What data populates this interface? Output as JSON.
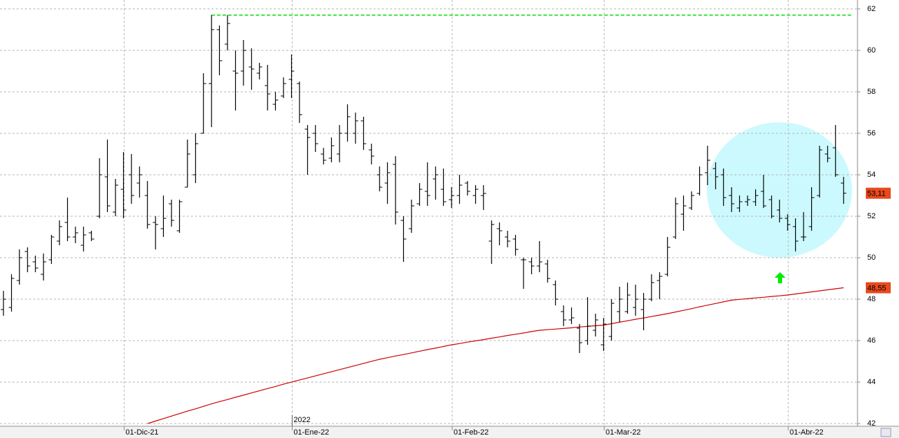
{
  "chart_data": {
    "type": "ohlc",
    "categories": [
      null,
      null,
      null,
      null,
      null,
      null,
      null,
      null,
      null,
      null,
      null,
      null,
      null,
      null,
      null,
      "01-Dic-21",
      null,
      null,
      null,
      null,
      null,
      null,
      null,
      null,
      null,
      null,
      null,
      null,
      null,
      null,
      null,
      null,
      null,
      null,
      null,
      null,
      "01-Ene-22",
      null,
      null,
      null,
      null,
      null,
      null,
      null,
      null,
      null,
      null,
      null,
      null,
      null,
      null,
      null,
      null,
      null,
      null,
      null,
      "01-Feb-22",
      null,
      null,
      null,
      null,
      null,
      null,
      null,
      null,
      null,
      null,
      null,
      null,
      null,
      null,
      null,
      null,
      null,
      null,
      "01-Mar-22",
      null,
      null,
      null,
      null,
      null,
      null,
      null,
      null,
      null,
      null,
      null,
      null,
      null,
      null,
      null,
      null,
      null,
      null,
      null,
      null,
      null,
      null,
      "01-Abr-22",
      null,
      null,
      null,
      null,
      null,
      null,
      null
    ],
    "year_label": "2022",
    "color": "#000000",
    "open": [
      47.5,
      47.6,
      48.9,
      50.3,
      49.8,
      49.2,
      49.9,
      50.8,
      51.7,
      51.0,
      50.6,
      51.2,
      52.0,
      53.9,
      52.2,
      53.3,
      54.0,
      53.6,
      53.0,
      51.7,
      51.4,
      52.6,
      51.3,
      53.4,
      54.0,
      56.0,
      58.4,
      61.0,
      60.3,
      59.0,
      59.0,
      59.2,
      58.9,
      58.3,
      57.4,
      57.8,
      58.6,
      58.4,
      56.2,
      56.0,
      55.0,
      54.8,
      55.0,
      56.0,
      56.0,
      56.6,
      55.2,
      54.0,
      53.6,
      54.5,
      51.8,
      51.4,
      52.6,
      53.2,
      53.8,
      53.3,
      52.8,
      53.0,
      53.6,
      53.0,
      53.0,
      50.8,
      51.4,
      51.0,
      50.9,
      49.9,
      49.8,
      49.6,
      49.7,
      48.7,
      47.4,
      47.0,
      46.6,
      46.0,
      46.5,
      45.8,
      46.2,
      47.4,
      47.4,
      47.6,
      47.5,
      48.0,
      48.9,
      49.2,
      51.0,
      52.1,
      52.4,
      53.1,
      54.1,
      54.3,
      54.0,
      53.0,
      52.4,
      52.7,
      52.7,
      53.2,
      52.8,
      52.3,
      51.9,
      51.5,
      51.0,
      51.5,
      53.0,
      55.0,
      55.3,
      53.6
    ],
    "high": [
      48.4,
      49.2,
      50.4,
      50.5,
      50.1,
      50.2,
      51.1,
      51.8,
      52.9,
      51.5,
      51.5,
      51.3,
      54.8,
      55.7,
      53.8,
      55.1,
      55.0,
      54.4,
      53.7,
      52.0,
      53.0,
      52.8,
      52.8,
      55.7,
      56.0,
      58.9,
      61.7,
      61.2,
      61.7,
      60.0,
      60.5,
      60.1,
      59.4,
      59.3,
      58.0,
      58.7,
      59.8,
      58.5,
      56.4,
      56.4,
      55.3,
      55.8,
      56.4,
      57.4,
      57.0,
      56.8,
      55.5,
      54.4,
      54.6,
      54.9,
      52.0,
      52.8,
      53.6,
      54.6,
      54.4,
      54.3,
      53.4,
      54.0,
      53.7,
      53.5,
      53.5,
      51.8,
      51.7,
      51.3,
      51.1,
      50.0,
      50.0,
      50.8,
      49.9,
      48.9,
      47.7,
      47.6,
      46.8,
      48.1,
      47.3,
      47.1,
      48.0,
      48.6,
      48.8,
      48.7,
      48.3,
      49.2,
      49.3,
      51.0,
      52.9,
      53.0,
      53.2,
      54.4,
      55.4,
      54.6,
      54.3,
      53.4,
      53.0,
      53.0,
      53.3,
      54.0,
      53.0,
      52.8,
      52.1,
      51.9,
      52.2,
      53.4,
      55.4,
      55.4,
      56.4,
      53.9
    ],
    "low": [
      47.2,
      47.4,
      48.7,
      49.3,
      49.3,
      48.9,
      49.7,
      50.6,
      50.8,
      50.7,
      50.3,
      50.8,
      51.9,
      52.2,
      52.0,
      51.9,
      52.6,
      52.9,
      51.4,
      50.4,
      51.0,
      51.5,
      51.2,
      53.4,
      53.6,
      56.0,
      56.3,
      58.8,
      60.0,
      57.1,
      58.3,
      58.1,
      58.6,
      57.1,
      57.1,
      57.7,
      57.7,
      56.5,
      54.0,
      55.1,
      54.5,
      54.6,
      54.6,
      55.6,
      55.5,
      55.2,
      54.5,
      53.2,
      52.6,
      51.6,
      49.8,
      51.2,
      52.5,
      52.5,
      52.8,
      52.5,
      52.4,
      52.6,
      53.0,
      52.6,
      52.3,
      49.7,
      50.6,
      50.5,
      50.1,
      48.5,
      49.2,
      49.3,
      48.8,
      47.7,
      46.7,
      46.8,
      45.4,
      45.8,
      46.2,
      45.5,
      46.0,
      46.9,
      47.3,
      47.2,
      46.5,
      47.9,
      48.0,
      49.1,
      50.9,
      51.3,
      52.3,
      53.0,
      53.5,
      53.3,
      52.5,
      52.2,
      52.2,
      52.5,
      52.5,
      52.4,
      51.9,
      51.7,
      51.3,
      50.3,
      50.8,
      51.3,
      52.9,
      54.6,
      53.9,
      52.6
    ],
    "close": [
      48.0,
      49.0,
      50.0,
      49.6,
      49.5,
      49.8,
      51.0,
      51.5,
      51.0,
      51.2,
      51.1,
      50.9,
      54.0,
      52.5,
      53.5,
      52.3,
      53.0,
      54.0,
      51.6,
      51.6,
      51.9,
      51.8,
      52.7,
      55.0,
      55.5,
      58.4,
      61.0,
      59.5,
      61.3,
      58.9,
      60.0,
      59.1,
      59.2,
      57.9,
      57.6,
      58.4,
      59.0,
      56.9,
      55.8,
      55.5,
      54.7,
      55.4,
      56.0,
      56.8,
      56.6,
      55.5,
      54.9,
      53.4,
      54.1,
      52.2,
      50.9,
      52.5,
      53.3,
      53.0,
      54.0,
      52.7,
      53.0,
      53.5,
      53.2,
      53.3,
      53.1,
      51.6,
      51.3,
      50.8,
      50.4,
      49.9,
      49.6,
      49.8,
      49.0,
      48.0,
      47.0,
      47.1,
      45.9,
      46.7,
      47.0,
      46.8,
      47.8,
      48.0,
      48.2,
      48.0,
      48.0,
      48.8,
      49.1,
      50.5,
      52.6,
      52.5,
      53.0,
      54.0,
      54.7,
      53.9,
      52.9,
      52.6,
      52.7,
      52.8,
      53.0,
      52.5,
      52.0,
      51.9,
      51.6,
      50.8,
      51.0,
      52.9,
      55.2,
      54.8,
      54.0,
      53.11
    ],
    "close_tag": {
      "value": 53.11,
      "label": "53,11"
    },
    "moving_average": {
      "color": "#cc0000",
      "values": [
        null,
        null,
        null,
        null,
        null,
        null,
        null,
        null,
        null,
        null,
        null,
        null,
        null,
        null,
        null,
        null,
        null,
        null,
        42.0,
        42.12,
        42.24,
        42.36,
        42.48,
        42.6,
        42.71,
        42.83,
        42.95,
        43.06,
        43.16,
        43.27,
        43.37,
        43.48,
        43.58,
        43.69,
        43.79,
        43.9,
        44.0,
        44.1,
        44.2,
        44.3,
        44.4,
        44.5,
        44.6,
        44.7,
        44.8,
        44.9,
        45.0,
        45.1,
        45.18,
        45.26,
        45.33,
        45.41,
        45.49,
        45.57,
        45.64,
        45.72,
        45.8,
        45.86,
        45.93,
        45.99,
        46.05,
        46.12,
        46.18,
        46.25,
        46.31,
        46.37,
        46.44,
        46.5,
        46.53,
        46.56,
        46.59,
        46.62,
        46.66,
        46.69,
        46.72,
        46.75,
        46.82,
        46.89,
        46.96,
        47.03,
        47.09,
        47.16,
        47.23,
        47.3,
        47.38,
        47.46,
        47.54,
        47.63,
        47.71,
        47.79,
        47.87,
        47.95,
        47.99,
        48.02,
        48.06,
        48.09,
        48.13,
        48.16,
        48.2,
        48.25,
        48.3,
        48.35,
        48.4,
        48.45,
        48.5,
        48.55
      ],
      "tag": {
        "value": 48.55,
        "label": "48,55"
      }
    },
    "resistance": {
      "value": 61.7,
      "color": "#00dd00"
    },
    "ylim": [
      41.87,
      62.43
    ],
    "yticks": [
      42,
      44,
      46,
      48,
      50,
      52,
      54,
      56,
      58,
      60,
      62
    ],
    "grid": true
  }
}
